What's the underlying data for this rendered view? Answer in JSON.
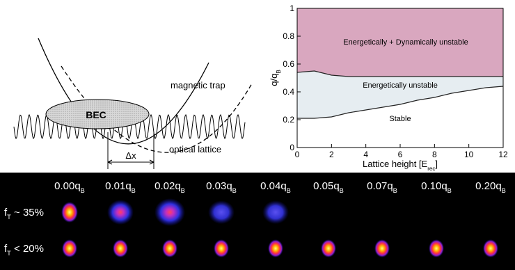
{
  "diagram": {
    "labels": {
      "trap": "magnetic trap",
      "lattice": "optical lattice",
      "bec": "BEC",
      "shift": "Δx"
    }
  },
  "chart_data": {
    "type": "area",
    "x": [
      0,
      1,
      2,
      3,
      4,
      5,
      6,
      7,
      8,
      9,
      10,
      11,
      12
    ],
    "series": [
      {
        "color": "#d9a7bf",
        "values": [
          0.54,
          0.55,
          0.52,
          0.51,
          0.51,
          0.51,
          0.51,
          0.51,
          0.51,
          0.51,
          0.51,
          0.51,
          0.51
        ]
      },
      {
        "color": "#e6edf1",
        "values": [
          0.21,
          0.21,
          0.22,
          0.25,
          0.27,
          0.29,
          0.31,
          0.34,
          0.36,
          0.39,
          0.41,
          0.43,
          0.44
        ]
      }
    ],
    "xlim": [
      0,
      12
    ],
    "xticks": [
      0,
      2,
      4,
      6,
      8,
      10,
      12
    ],
    "ylim": [
      0,
      1
    ],
    "yticks": [
      0,
      0.2,
      0.4,
      0.6,
      0.8,
      1
    ],
    "xlabel": [
      "Lattice height [E",
      "rec",
      "]"
    ],
    "ylabel": [
      "q/q",
      "B"
    ],
    "annotations": [
      "Energetically + Dynamically unstable",
      "Energetically unstable",
      "Stable"
    ]
  },
  "images": {
    "columns": [
      [
        "0.00q",
        "B"
      ],
      [
        "0.01q",
        "B"
      ],
      [
        "0.02q",
        "B"
      ],
      [
        "0.03q",
        "B"
      ],
      [
        "0.04q",
        "B"
      ],
      [
        "0.05q",
        "B"
      ],
      [
        "0.07q",
        "B"
      ],
      [
        "0.10q",
        "B"
      ],
      [
        "0.20q",
        "B"
      ]
    ],
    "rows": [
      [
        "f",
        "T",
        " ~ 35%"
      ],
      [
        "f",
        "T",
        " < 20%"
      ]
    ]
  }
}
